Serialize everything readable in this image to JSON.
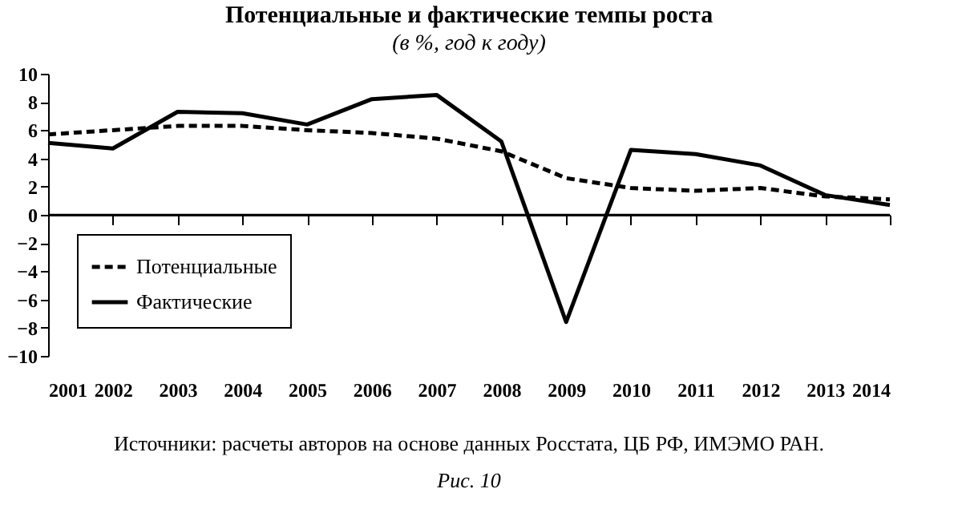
{
  "chart_data": {
    "type": "line",
    "title": "Потенциальные и фактические темпы роста",
    "subtitle": "(в %, год к году)",
    "x": [
      2001,
      2002,
      2003,
      2004,
      2005,
      2006,
      2007,
      2008,
      2009,
      2010,
      2011,
      2012,
      2013,
      2014
    ],
    "series": [
      {
        "name": "Потенциальные",
        "color": "#000000",
        "line_style": "dashed",
        "values": [
          5.7,
          6.0,
          6.3,
          6.3,
          6.0,
          5.8,
          5.4,
          4.5,
          2.6,
          1.9,
          1.7,
          1.9,
          1.3,
          1.1
        ]
      },
      {
        "name": "Фактические",
        "color": "#000000",
        "line_style": "solid",
        "values": [
          5.1,
          4.7,
          7.3,
          7.2,
          6.4,
          8.2,
          8.5,
          5.2,
          -7.6,
          4.6,
          4.3,
          3.5,
          1.4,
          0.7
        ]
      }
    ],
    "xlim": [
      2001,
      2014
    ],
    "xticks": [
      2001,
      2002,
      2003,
      2004,
      2005,
      2006,
      2007,
      2008,
      2009,
      2010,
      2011,
      2012,
      2013,
      2014
    ],
    "ylim": [
      -10,
      10
    ],
    "yticks": [
      -10,
      -8,
      -6,
      -4,
      -2,
      0,
      2,
      4,
      6,
      8,
      10
    ],
    "ref_lines": [
      {
        "axis": "y",
        "value": 0
      }
    ],
    "grid": false,
    "legend": "bottom left",
    "marker": "none",
    "annotations": [
      "Источники: расчеты авторов на основе данных Росстата, ЦБ РФ, ИМЭМО РАН.",
      "Рис. 10"
    ]
  }
}
